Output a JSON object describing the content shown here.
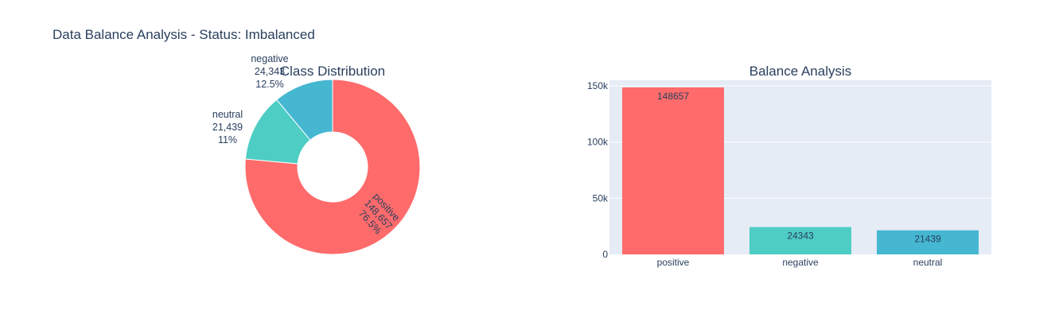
{
  "title": "Data Balance Analysis - Status: Imbalanced",
  "colors": {
    "positive": "#ff6b6b",
    "negative": "#4ecdc4",
    "neutral": "#45b7d1",
    "plot_bg": "#e5ecf6",
    "text": "#2a3f5f"
  },
  "chart_data": [
    {
      "type": "pie",
      "title": "Class Distribution",
      "hole": true,
      "slices": [
        {
          "label": "positive",
          "value": 148657,
          "value_label": "148,657",
          "percent_label": "76.5%"
        },
        {
          "label": "negative",
          "value": 24343,
          "value_label": "24,343",
          "percent_label": "12.5%"
        },
        {
          "label": "neutral",
          "value": 21439,
          "value_label": "21,439",
          "percent_label": "11%"
        }
      ]
    },
    {
      "type": "bar",
      "title": "Balance Analysis",
      "categories": [
        "positive",
        "negative",
        "neutral"
      ],
      "values": [
        148657,
        24343,
        21439
      ],
      "data_labels": [
        "148657",
        "24343",
        "21439"
      ],
      "ylim": [
        0,
        155000
      ],
      "yticks": [
        {
          "value": 0,
          "label": "0"
        },
        {
          "value": 50000,
          "label": "50k"
        },
        {
          "value": 100000,
          "label": "100k"
        },
        {
          "value": 150000,
          "label": "150k"
        }
      ],
      "grid": true
    }
  ]
}
